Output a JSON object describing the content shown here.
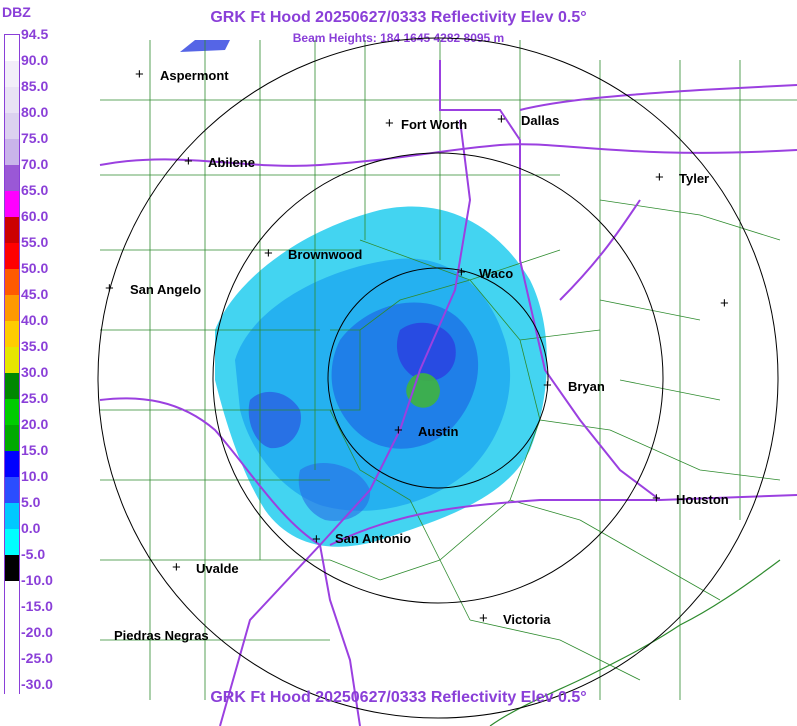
{
  "header": {
    "title": "GRK Ft Hood 20250627/0333 Reflectivity Elev 0.5°",
    "beam_heights": "Beam Heights: 184 1645 4282 8095 m",
    "footer_title": "GRK Ft Hood 20250627/0333 Reflectivity Elev 0.5°"
  },
  "legend": {
    "unit": "DBZ",
    "labels": [
      "94.5",
      "90.0",
      "85.0",
      "80.0",
      "75.0",
      "70.0",
      "65.0",
      "60.0",
      "55.0",
      "50.0",
      "45.0",
      "40.0",
      "35.0",
      "30.0",
      "25.0",
      "20.0",
      "15.0",
      "10.0",
      "5.0",
      "0.0",
      "-5.0",
      "-10.0",
      "-15.0",
      "-20.0",
      "-25.0",
      "-30.0"
    ],
    "colors": [
      "#ffffff",
      "#f2eef9",
      "#e9e2f5",
      "#dcd1f0",
      "#c9b4ea",
      "#9a58d6",
      "#ff00ff",
      "#cc0000",
      "#ff0000",
      "#ff5a00",
      "#ff9900",
      "#ffcc00",
      "#e6e600",
      "#008800",
      "#00cc00",
      "#00aa00",
      "#0000ff",
      "#2a4dff",
      "#00c8ff",
      "#00ffff",
      "#000000",
      "#ffffff",
      "#ffffff",
      "#ffffff",
      "#ffffff",
      "#ffffff"
    ]
  },
  "cities": [
    {
      "name": "Aspermont"
    },
    {
      "name": "Fort Worth"
    },
    {
      "name": "Dallas"
    },
    {
      "name": "Abilene"
    },
    {
      "name": "Tyler"
    },
    {
      "name": "Brownwood"
    },
    {
      "name": "Waco"
    },
    {
      "name": "San Angelo"
    },
    {
      "name": "Bryan"
    },
    {
      "name": "Austin"
    },
    {
      "name": "Houston"
    },
    {
      "name": "San Antonio"
    },
    {
      "name": "Uvalde"
    },
    {
      "name": "Victoria"
    },
    {
      "name": "Piedras Negras"
    }
  ],
  "colors": {
    "title": "#8a3fd8",
    "county_lines": "#2e8b2e",
    "highways": "#9b40e0",
    "range_rings": "#000000"
  }
}
